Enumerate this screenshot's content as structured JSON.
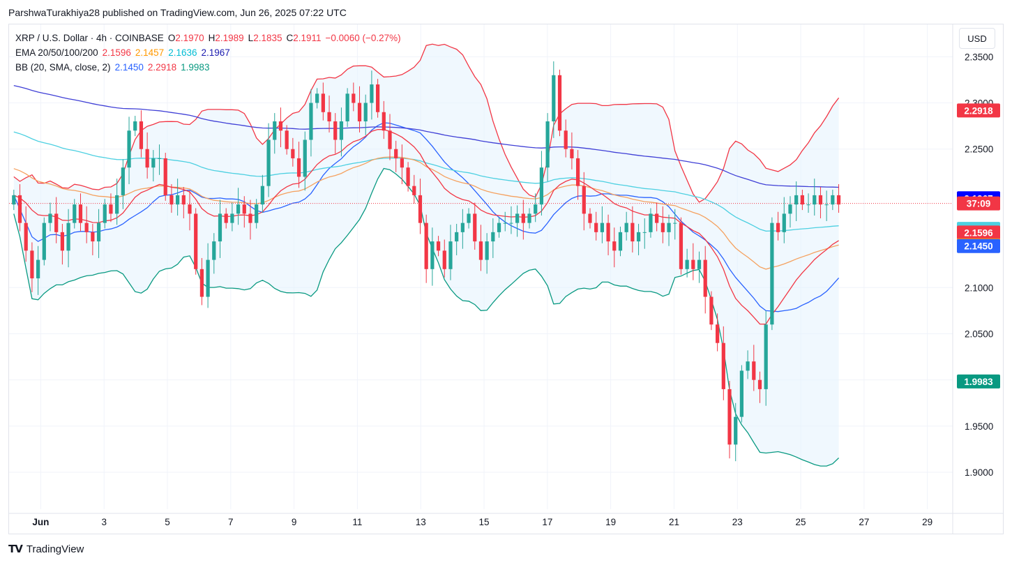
{
  "header": {
    "publisher_line": "ParshwaTurakhiya28 published on TradingView.com, Jun 26, 2025 07:22 UTC"
  },
  "legend": {
    "symbol_line": {
      "symbol": "XRP / U.S. Dollar · 4h · COINBASE",
      "o_label": "O",
      "o": "2.1970",
      "h_label": "H",
      "h": "2.1989",
      "l_label": "L",
      "l": "2.1835",
      "c_label": "C",
      "c": "2.1911",
      "change": "−0.0060 (−0.27%)"
    },
    "ema_line": {
      "label": "EMA 20/50/100/200",
      "v20": "2.1596",
      "v50": "2.1457",
      "v100": "2.1636",
      "v200": "2.1967"
    },
    "bb_line": {
      "label": "BB (20, SMA, close, 2)",
      "basis": "2.1450",
      "upper": "2.2918",
      "lower": "1.9983"
    }
  },
  "currency_button": "USD",
  "footer": {
    "logo_glyph": "TV",
    "brand": "TradingView"
  },
  "colors": {
    "up": "#26a69a",
    "down": "#f23645",
    "ema20": "#f23645",
    "ema50": "#ff9800",
    "ema100": "#4dd0e1",
    "ema200": "#2962ff",
    "bb_basis": "#2962ff",
    "bb_upper": "#f23645",
    "bb_lower": "#089981",
    "bb_fill": "#e3f2fd"
  },
  "chart_data": {
    "type": "candlestick",
    "x_axis": {
      "range_days": [
        0,
        29.8
      ],
      "ticks": [
        {
          "day": 1,
          "label": "Jun"
        },
        {
          "day": 3,
          "label": "3"
        },
        {
          "day": 5,
          "label": "5"
        },
        {
          "day": 7,
          "label": "7"
        },
        {
          "day": 9,
          "label": "9"
        },
        {
          "day": 11,
          "label": "11"
        },
        {
          "day": 13,
          "label": "13"
        },
        {
          "day": 15,
          "label": "15"
        },
        {
          "day": 17,
          "label": "17"
        },
        {
          "day": 19,
          "label": "19"
        },
        {
          "day": 21,
          "label": "21"
        },
        {
          "day": 23,
          "label": "23"
        },
        {
          "day": 25,
          "label": "25"
        },
        {
          "day": 27,
          "label": "27"
        },
        {
          "day": 29,
          "label": "29"
        }
      ]
    },
    "y_axis": {
      "range": [
        1.86,
        2.385
      ],
      "ticks": [
        "1.9000",
        "1.9500",
        "2.0000",
        "2.0500",
        "2.1000",
        "2.2500",
        "2.3000",
        "2.3500"
      ]
    },
    "grid": true,
    "current_price": 2.1911,
    "price_labels": [
      {
        "value": 2.2918,
        "text": "2.2918",
        "color": "#f23645"
      },
      {
        "value": 2.1967,
        "text": "2.1967",
        "color": "#2962ff"
      },
      {
        "value": 2.1911,
        "text": "37:09",
        "color": "#f23645"
      },
      {
        "value": 2.1636,
        "text": "2.1636",
        "color": "#4dd0e1"
      },
      {
        "value": 2.1596,
        "text": "2.1596",
        "color": "#f23645"
      },
      {
        "value": 2.1457,
        "text": "2.1457",
        "color": "#ff9800"
      },
      {
        "value": 2.145,
        "text": "2.1450",
        "color": "#2962ff"
      },
      {
        "value": 1.9983,
        "text": "1.9983",
        "color": "#089981"
      }
    ],
    "closes": [
      2.2,
      2.17,
      2.14,
      2.11,
      2.13,
      2.17,
      2.18,
      2.16,
      2.14,
      2.17,
      2.19,
      2.17,
      2.16,
      2.15,
      2.17,
      2.19,
      2.18,
      2.2,
      2.23,
      2.27,
      2.28,
      2.25,
      2.23,
      2.24,
      2.24,
      2.2,
      2.19,
      2.2,
      2.19,
      2.18,
      2.12,
      2.09,
      2.13,
      2.15,
      2.18,
      2.17,
      2.18,
      2.19,
      2.18,
      2.17,
      2.19,
      2.21,
      2.26,
      2.28,
      2.27,
      2.25,
      2.24,
      2.22,
      2.26,
      2.3,
      2.31,
      2.29,
      2.28,
      2.26,
      2.28,
      2.31,
      2.3,
      2.28,
      2.3,
      2.32,
      2.29,
      2.27,
      2.25,
      2.24,
      2.23,
      2.21,
      2.2,
      2.17,
      2.12,
      2.15,
      2.14,
      2.12,
      2.15,
      2.16,
      2.17,
      2.18,
      2.15,
      2.13,
      2.15,
      2.16,
      2.17,
      2.17,
      2.17,
      2.18,
      2.17,
      2.18,
      2.19,
      2.23,
      2.28,
      2.33,
      2.27,
      2.25,
      2.24,
      2.21,
      2.18,
      2.17,
      2.16,
      2.17,
      2.15,
      2.14,
      2.16,
      2.17,
      2.15,
      2.16,
      2.16,
      2.18,
      2.17,
      2.16,
      2.17,
      2.17,
      2.12,
      2.13,
      2.12,
      2.13,
      2.09,
      2.06,
      2.04,
      1.99,
      1.93,
      1.96,
      2.01,
      2.02,
      2.0,
      1.99,
      2.06,
      2.17,
      2.16,
      2.18,
      2.19,
      2.2,
      2.19,
      2.19,
      2.2,
      2.19,
      2.19,
      2.2,
      2.19
    ]
  }
}
